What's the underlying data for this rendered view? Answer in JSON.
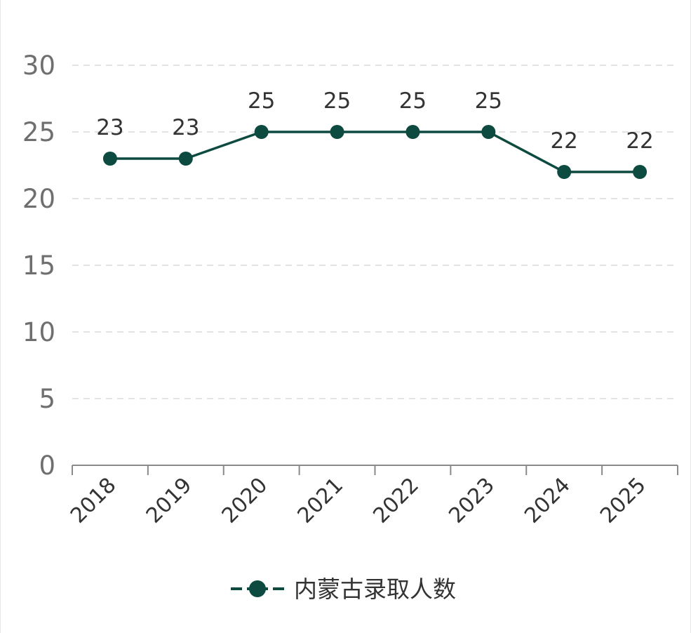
{
  "chart_data": {
    "type": "line",
    "title": "",
    "xlabel": "",
    "ylabel": "",
    "categories": [
      "2018",
      "2019",
      "2020",
      "2021",
      "2022",
      "2023",
      "2024",
      "2025"
    ],
    "series": [
      {
        "name": "内蒙古录取人数",
        "values": [
          23,
          23,
          25,
          25,
          25,
          25,
          22,
          22
        ],
        "color": "#0d4a40"
      }
    ],
    "ylim": [
      0,
      30
    ],
    "yticks": [
      0,
      5,
      10,
      15,
      20,
      25,
      30
    ],
    "grid": true,
    "legend_position": "bottom-center",
    "data_labels": true,
    "colors": {
      "series": "#0d4a40",
      "grid": "#e3e3e3",
      "axis": "#8a8a8a",
      "y_tick_text": "#6f6f6f",
      "label_text": "#333333"
    }
  }
}
